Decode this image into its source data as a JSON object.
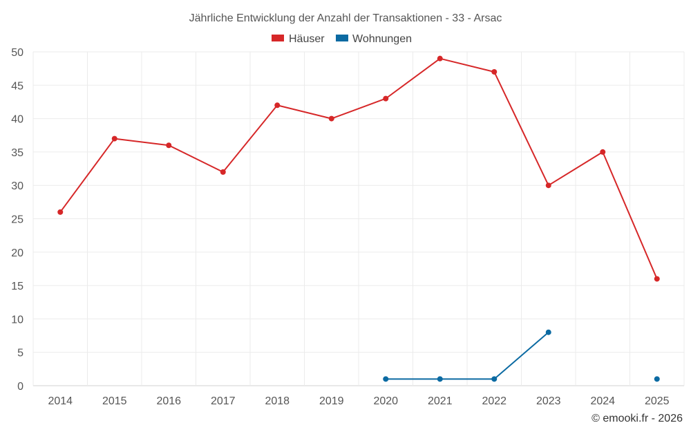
{
  "chart_data": {
    "type": "line",
    "title": "Jährliche Entwicklung der Anzahl der Transaktionen - 33 - Arsac",
    "categories": [
      "2014",
      "2015",
      "2016",
      "2017",
      "2018",
      "2019",
      "2020",
      "2021",
      "2022",
      "2023",
      "2024",
      "2025"
    ],
    "ylim": [
      0,
      50
    ],
    "yticks": [
      0,
      5,
      10,
      15,
      20,
      25,
      30,
      35,
      40,
      45,
      50
    ],
    "grid": true,
    "legend_position": "top-center",
    "series": [
      {
        "name": "Häuser",
        "color": "#d62728",
        "values": [
          26,
          37,
          36,
          32,
          42,
          40,
          43,
          49,
          47,
          30,
          35,
          16
        ]
      },
      {
        "name": "Wohnungen",
        "color": "#0b6aa2",
        "values": [
          null,
          null,
          null,
          null,
          null,
          null,
          1,
          1,
          1,
          8,
          null,
          1
        ]
      }
    ]
  },
  "credit": "© emooki.fr - 2026"
}
